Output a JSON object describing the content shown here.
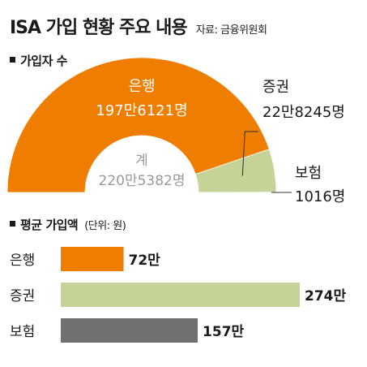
{
  "title": "ISA 가입 현황 주요 내용",
  "source": "자료: 금융위원회",
  "colors": {
    "bank": "#ee7d00",
    "securities": "#c5d396",
    "insurance": "#707070",
    "total_text": "#999999"
  },
  "chart_data": [
    {
      "type": "pie",
      "title": "가입자 수",
      "center_label": "계",
      "center_value": "220만5382명",
      "total": 2205382,
      "categories": [
        "은행",
        "증권",
        "보험"
      ],
      "values": [
        1976121,
        228245,
        1016
      ],
      "value_labels": [
        "197만6121명",
        "22만8245명",
        "1016명"
      ]
    },
    {
      "type": "bar",
      "title": "평균 가입액",
      "unit_label": "(단위: 원)",
      "categories": [
        "은행",
        "증권",
        "보험"
      ],
      "values": [
        72,
        274,
        157
      ],
      "value_labels": [
        "72만",
        "274만",
        "157만"
      ]
    }
  ]
}
